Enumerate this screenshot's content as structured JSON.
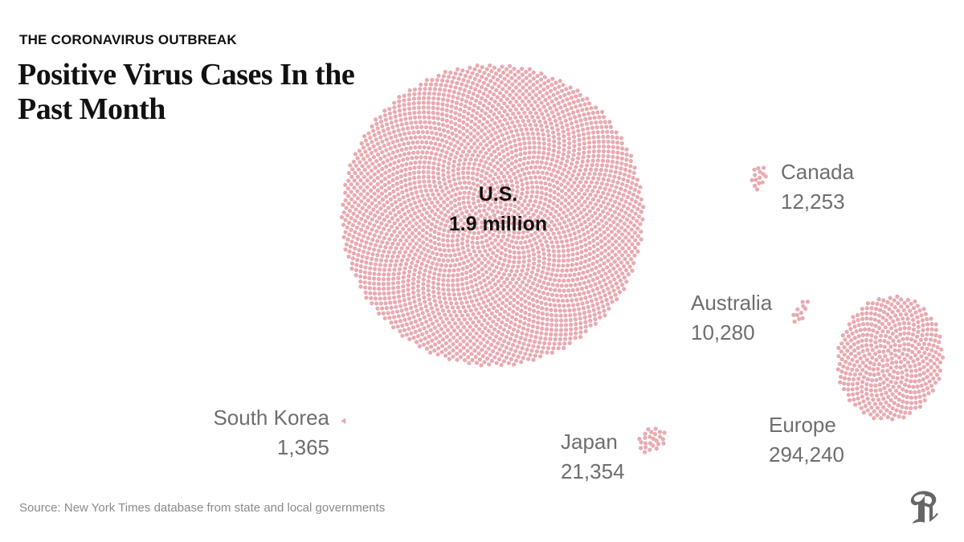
{
  "header": {
    "kicker": "THE CORONAVIRUS OUTBREAK",
    "title": "Positive Virus Cases In the Past Month"
  },
  "footer": {
    "source": "Source: New York Times database from state and local governments",
    "logo_icon": "nyt-logo-icon"
  },
  "colors": {
    "dot": "#e8aab0",
    "us_label": "#111111",
    "label": "#6e6e6e"
  },
  "chart_data": {
    "type": "bubble-dot-cluster",
    "title": "Positive Virus Cases In the Past Month",
    "unit": "positive cases",
    "regions": [
      {
        "name": "U.S.",
        "display_value": "1.9 million",
        "value": 1900000
      },
      {
        "name": "Europe",
        "display_value": "294,240",
        "value": 294240
      },
      {
        "name": "Japan",
        "display_value": "21,354",
        "value": 21354
      },
      {
        "name": "Canada",
        "display_value": "12,253",
        "value": 12253
      },
      {
        "name": "Australia",
        "display_value": "10,280",
        "value": 10280
      },
      {
        "name": "South Korea",
        "display_value": "1,365",
        "value": 1365
      }
    ]
  }
}
